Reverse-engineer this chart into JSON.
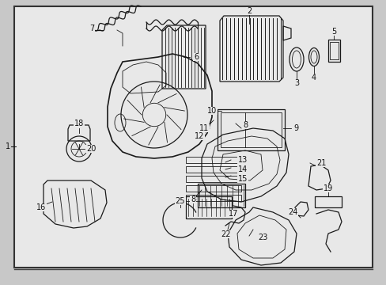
{
  "bg_color": "#c8c8c8",
  "diagram_bg": "#e8e8e8",
  "line_color": "#1a1a1a",
  "border_color": "#444444",
  "label_fontsize": 7.0,
  "label_color": "#111111",
  "figsize": [
    4.89,
    3.6
  ],
  "dpi": 100
}
